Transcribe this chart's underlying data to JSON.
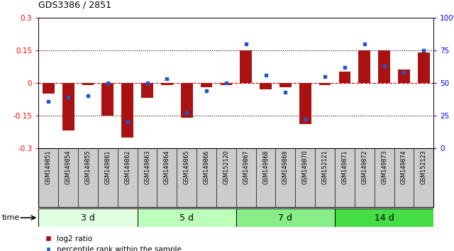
{
  "title": "GDS3386 / 2851",
  "samples": [
    "GSM149851",
    "GSM149854",
    "GSM149855",
    "GSM149861",
    "GSM149862",
    "GSM149863",
    "GSM149864",
    "GSM149865",
    "GSM149866",
    "GSM152120",
    "GSM149867",
    "GSM149868",
    "GSM149869",
    "GSM149870",
    "GSM152121",
    "GSM149871",
    "GSM149872",
    "GSM149873",
    "GSM149874",
    "GSM152123"
  ],
  "log2_ratio": [
    -0.05,
    -0.22,
    -0.01,
    -0.15,
    -0.25,
    -0.07,
    -0.01,
    -0.16,
    -0.02,
    -0.01,
    0.15,
    -0.03,
    -0.02,
    -0.19,
    -0.01,
    0.05,
    0.15,
    0.15,
    0.06,
    0.14
  ],
  "percentile": [
    36,
    39,
    40,
    50,
    20,
    50,
    53,
    27,
    44,
    50,
    80,
    56,
    43,
    22,
    55,
    62,
    80,
    63,
    58,
    75
  ],
  "groups": [
    {
      "label": "3 d",
      "start": 0,
      "end": 5,
      "color": "#e0ffe0"
    },
    {
      "label": "5 d",
      "start": 5,
      "end": 10,
      "color": "#bbffbb"
    },
    {
      "label": "7 d",
      "start": 10,
      "end": 15,
      "color": "#88ee88"
    },
    {
      "label": "14 d",
      "start": 15,
      "end": 20,
      "color": "#44dd44"
    }
  ],
  "bar_color": "#aa1111",
  "dot_color": "#2255cc",
  "dashed_line_color": "#cc0000",
  "background_color": "#ffffff",
  "label_bg_color": "#cccccc",
  "ylim": [
    -0.3,
    0.3
  ],
  "y2lim": [
    0,
    100
  ],
  "yticks": [
    -0.3,
    -0.15,
    0.0,
    0.15,
    0.3
  ],
  "ytick_labels": [
    "-0.3",
    "-0.15",
    "0",
    "0.15",
    "0.3"
  ],
  "y2ticks": [
    0,
    25,
    50,
    75,
    100
  ],
  "y2tick_labels": [
    "0",
    "25",
    "50",
    "75",
    "100%"
  ],
  "dotted_lines": [
    0.15,
    -0.15
  ],
  "bar_width": 0.6
}
